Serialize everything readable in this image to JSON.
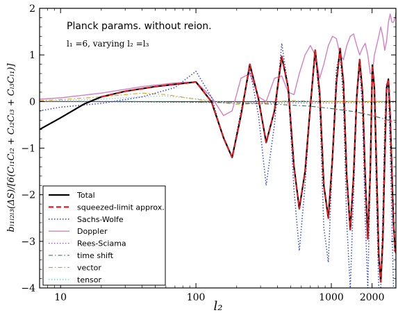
{
  "chart_data": {
    "type": "line",
    "title": "",
    "annotations": [
      "Planck params. without reion.",
      "l₁ =6, varying l₂ =l₃"
    ],
    "xlabel": "l₂",
    "ylabel": "bₗ₁ₗ₂ₗ₃(ΔS)/[6(Cₗ₁Cₗ₂ + Cₗ₂Cₗ₃ + Cₗ₃Cₗ₁)]",
    "xscale": "log",
    "xlim": [
      7,
      3000
    ],
    "ylim": [
      -4,
      2
    ],
    "xticks": [
      10,
      100,
      1000,
      2000
    ],
    "xtick_labels": [
      "10",
      "100",
      "1000",
      "2000"
    ],
    "yticks": [
      -4,
      -3,
      -2,
      -1,
      0,
      1,
      2
    ],
    "ytick_labels": [
      "−4",
      "−3",
      "−2",
      "−1",
      "0",
      "1",
      "2"
    ],
    "grid": false,
    "legend_position": "lower-left",
    "series": [
      {
        "name": "Total",
        "color": "#000000",
        "style": "solid",
        "width": 2.2,
        "x": [
          7,
          10,
          15,
          20,
          30,
          50,
          70,
          100,
          130,
          160,
          185,
          215,
          250,
          290,
          330,
          380,
          430,
          480,
          530,
          580,
          640,
          700,
          760,
          820,
          880,
          950,
          1020,
          1090,
          1160,
          1230,
          1300,
          1380,
          1460,
          1540,
          1620,
          1700,
          1780,
          1860,
          1940,
          2010,
          2080,
          2160,
          2240,
          2320,
          2400,
          2480,
          2560,
          2640,
          2720,
          2800,
          2880,
          2960,
          3000
        ],
        "y": [
          -0.6,
          -0.35,
          -0.05,
          0.1,
          0.22,
          0.32,
          0.37,
          0.42,
          0.0,
          -0.78,
          -1.2,
          -0.3,
          0.8,
          0.05,
          -0.88,
          -0.2,
          0.97,
          0.3,
          -1.4,
          -2.3,
          -1.5,
          -0.1,
          1.1,
          0.2,
          -1.8,
          -2.5,
          -1.2,
          0.4,
          1.14,
          0.4,
          -1.6,
          -2.75,
          -1.6,
          0.1,
          0.9,
          0.2,
          -1.6,
          -2.95,
          -1.5,
          0.78,
          0.3,
          -1.5,
          -3.3,
          -3.87,
          -3.0,
          -1.2,
          0.3,
          0.48,
          -0.3,
          -1.5,
          -2.6,
          -3.2,
          -3.25
        ]
      },
      {
        "name": "squeezed-limit approx.",
        "color": "#e31a1c",
        "style": "dashed",
        "width": 2.2,
        "x": [
          20,
          30,
          50,
          70,
          100,
          130,
          160,
          185,
          215,
          250,
          290,
          330,
          380,
          430,
          480,
          530,
          580,
          640,
          700,
          760,
          820,
          880,
          950,
          1020,
          1090,
          1160,
          1230,
          1300,
          1380,
          1460,
          1540,
          1620,
          1700,
          1780,
          1860,
          1940,
          2010,
          2080,
          2160,
          2240,
          2320,
          2400,
          2480,
          2560,
          2640,
          2720,
          2800,
          2880,
          2960,
          3000
        ],
        "y": [
          0.1,
          0.22,
          0.32,
          0.37,
          0.42,
          0.0,
          -0.78,
          -1.2,
          -0.3,
          0.8,
          0.05,
          -0.88,
          -0.2,
          0.97,
          0.3,
          -1.4,
          -2.3,
          -1.5,
          -0.1,
          1.1,
          0.2,
          -1.8,
          -2.5,
          -1.2,
          0.4,
          1.14,
          0.4,
          -1.6,
          -2.75,
          -1.6,
          0.1,
          0.9,
          0.2,
          -1.6,
          -2.95,
          -1.5,
          0.78,
          0.3,
          -1.5,
          -3.3,
          -3.87,
          -3.0,
          -1.2,
          0.3,
          0.48,
          -0.3,
          -1.5,
          -2.6,
          -3.2,
          -3.25
        ]
      },
      {
        "name": "Sachs-Wolfe",
        "color": "#3a4fc4",
        "style": "dotted",
        "width": 1.6,
        "x": [
          7,
          10,
          20,
          40,
          70,
          100,
          130,
          160,
          185,
          215,
          250,
          290,
          330,
          380,
          430,
          480,
          530,
          580,
          640,
          700,
          760,
          820,
          880,
          950,
          1020,
          1090,
          1160,
          1230,
          1300,
          1380,
          1460,
          1540,
          1620,
          1700,
          1780,
          1860,
          1940,
          2010,
          2080,
          2160,
          2240,
          2320,
          2400,
          2480,
          2560,
          2640,
          2720,
          2800,
          2880,
          2960,
          3000
        ],
        "y": [
          -0.2,
          -0.12,
          -0.04,
          0.1,
          0.3,
          0.65,
          0.1,
          -0.8,
          -1.2,
          -0.2,
          0.7,
          -0.3,
          -1.8,
          -0.5,
          1.25,
          0.3,
          -1.9,
          -3.2,
          -1.8,
          0.0,
          1.05,
          0.0,
          -2.7,
          -3.45,
          -1.2,
          0.7,
          1.05,
          0.0,
          -2.6,
          -4.0,
          -2.0,
          0.2,
          0.78,
          -0.2,
          -2.5,
          -4.0,
          -1.6,
          0.7,
          0.2,
          -2.2,
          -4.0,
          -4.0,
          -2.5,
          -0.5,
          0.4,
          0.3,
          -1.0,
          -2.6,
          -4.0,
          -4.0,
          -4.0
        ]
      },
      {
        "name": "Doppler",
        "color": "#d47fc2",
        "style": "solid",
        "width": 1.4,
        "x": [
          7,
          10,
          20,
          40,
          70,
          100,
          130,
          160,
          185,
          215,
          250,
          290,
          330,
          380,
          430,
          480,
          530,
          580,
          640,
          700,
          760,
          820,
          880,
          950,
          1020,
          1090,
          1160,
          1230,
          1300,
          1380,
          1460,
          1540,
          1620,
          1700,
          1780,
          1860,
          1940,
          2010,
          2080,
          2160,
          2240,
          2320,
          2400,
          2480,
          2560,
          2640,
          2720,
          2800,
          2880,
          2960,
          3000
        ],
        "y": [
          0.05,
          0.08,
          0.18,
          0.32,
          0.4,
          0.42,
          0.1,
          -0.3,
          -0.2,
          0.5,
          0.6,
          0.1,
          0.0,
          0.5,
          0.55,
          0.2,
          0.15,
          0.6,
          1.0,
          1.2,
          1.0,
          0.5,
          0.8,
          1.2,
          1.4,
          1.35,
          1.0,
          0.9,
          1.2,
          1.4,
          1.45,
          1.2,
          1.0,
          1.15,
          1.25,
          1.0,
          0.6,
          0.6,
          1.0,
          1.2,
          1.4,
          1.6,
          1.4,
          1.1,
          1.3,
          1.7,
          1.88,
          1.7,
          1.7,
          1.8,
          1.9
        ]
      },
      {
        "name": "Rees-Sciama",
        "color": "#9b59b6",
        "style": "dotted",
        "width": 1.2,
        "x": [
          7,
          10,
          30,
          100,
          300,
          1000,
          2000,
          3000
        ],
        "y": [
          0.0,
          0.0,
          -0.01,
          -0.02,
          -0.03,
          -0.03,
          -0.02,
          -0.02
        ]
      },
      {
        "name": "time shift",
        "color": "#2d6a4f",
        "style": "dashdot",
        "width": 1.1,
        "x": [
          7,
          10,
          30,
          100,
          200,
          400,
          700,
          1000,
          1500,
          2000,
          2500,
          3000
        ],
        "y": [
          0.0,
          0.0,
          0.0,
          -0.01,
          -0.03,
          -0.06,
          -0.1,
          -0.15,
          -0.22,
          -0.3,
          -0.38,
          -0.45
        ]
      },
      {
        "name": "vector",
        "color": "#d4a017",
        "style": "dashdot",
        "width": 1.1,
        "x": [
          7,
          10,
          20,
          40,
          60,
          100,
          150,
          200,
          300,
          500,
          1000,
          2000,
          3000
        ],
        "y": [
          0.02,
          0.04,
          0.1,
          0.18,
          0.15,
          0.05,
          -0.02,
          -0.06,
          -0.04,
          0.02,
          0.0,
          0.0,
          0.0
        ]
      },
      {
        "name": "tensor",
        "color": "#7fd3c7",
        "style": "dotted",
        "width": 1.3,
        "x": [
          7,
          10,
          20,
          40,
          60,
          100,
          150,
          200,
          300,
          500,
          1000,
          2000,
          3000
        ],
        "y": [
          0.0,
          0.02,
          0.05,
          0.1,
          0.12,
          0.06,
          0.0,
          -0.03,
          -0.02,
          0.0,
          0.0,
          0.0,
          0.0
        ]
      }
    ]
  }
}
